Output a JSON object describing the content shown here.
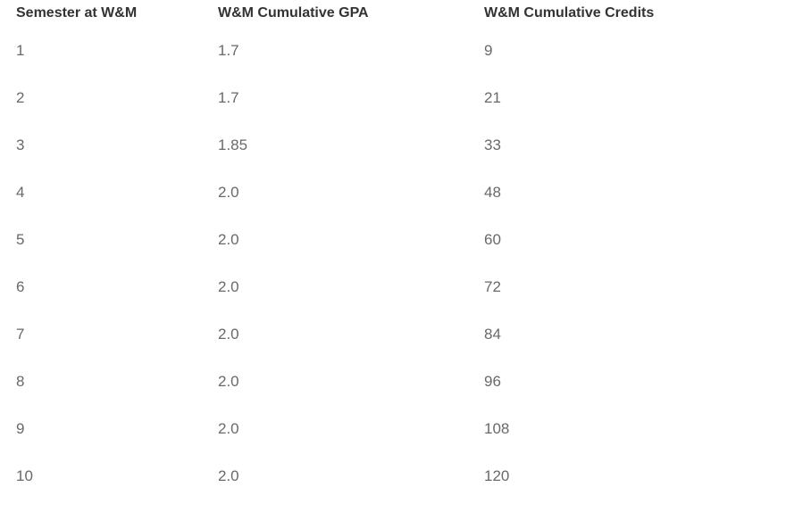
{
  "colors": {
    "background": "#ffffff",
    "header_text": "#333333",
    "body_text": "#696969"
  },
  "table": {
    "columns": [
      "Semester at W&M",
      "W&M Cumulative GPA",
      "W&M Cumulative Credits"
    ],
    "rows": [
      [
        "1",
        "1.7",
        "9"
      ],
      [
        "2",
        "1.7",
        "21"
      ],
      [
        "3",
        "1.85",
        "33"
      ],
      [
        "4",
        "2.0",
        "48"
      ],
      [
        "5",
        "2.0",
        "60"
      ],
      [
        "6",
        "2.0",
        "72"
      ],
      [
        "7",
        "2.0",
        "84"
      ],
      [
        "8",
        "2.0",
        "96"
      ],
      [
        "9",
        "2.0",
        "108"
      ],
      [
        "10",
        "2.0",
        "120"
      ]
    ]
  },
  "chart_data": {
    "type": "table",
    "title": "",
    "columns": [
      "Semester at W&M",
      "W&M Cumulative GPA",
      "W&M Cumulative Credits"
    ],
    "rows": [
      [
        1,
        1.7,
        9
      ],
      [
        2,
        1.7,
        21
      ],
      [
        3,
        1.85,
        33
      ],
      [
        4,
        2.0,
        48
      ],
      [
        5,
        2.0,
        60
      ],
      [
        6,
        2.0,
        72
      ],
      [
        7,
        2.0,
        84
      ],
      [
        8,
        2.0,
        96
      ],
      [
        9,
        2.0,
        108
      ],
      [
        10,
        2.0,
        120
      ]
    ]
  }
}
